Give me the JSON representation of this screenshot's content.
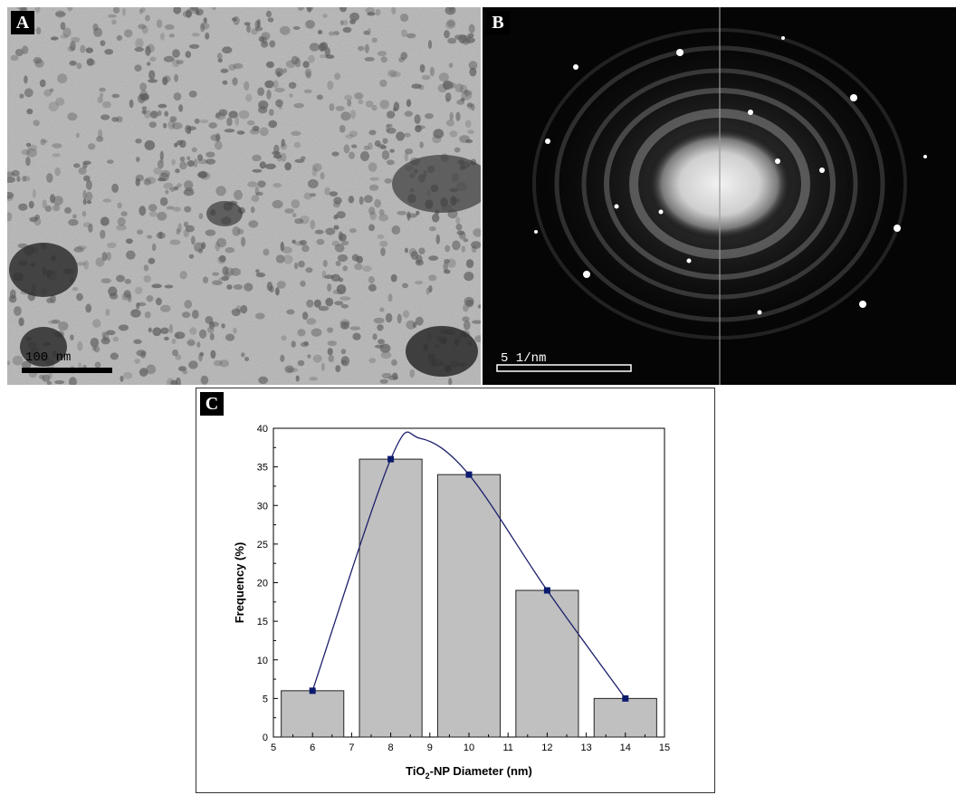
{
  "panels": {
    "a": {
      "letter": "A",
      "scale_bar_label": "100 nm"
    },
    "b": {
      "letter": "B",
      "scale_bar_label": "5 1/nm"
    },
    "c": {
      "letter": "C"
    }
  },
  "colors": {
    "bar_fill": "#c0c0c0",
    "bar_stroke": "#222222",
    "fit_line": "#1b1f6b",
    "marker": "#0a1a6e"
  },
  "chart_data": {
    "type": "bar",
    "title": "",
    "xlabel": "TiO2-NP Diameter (nm)",
    "xlabel_parts": {
      "pre": "TiO",
      "sub": "2",
      "post": "-NP Diameter (nm)"
    },
    "ylabel": "Frequency (%)",
    "xlim": [
      5,
      15
    ],
    "ylim": [
      0,
      40
    ],
    "xticks": [
      5,
      6,
      7,
      8,
      9,
      10,
      11,
      12,
      13,
      14,
      15
    ],
    "yticks": [
      0,
      5,
      10,
      15,
      20,
      25,
      30,
      35,
      40
    ],
    "bar_width": 1.6,
    "bars": [
      {
        "x": 6,
        "value": 6
      },
      {
        "x": 8,
        "value": 36
      },
      {
        "x": 10,
        "value": 34
      },
      {
        "x": 12,
        "value": 19
      },
      {
        "x": 14,
        "value": 5
      }
    ],
    "fit_curve_peak": {
      "x": 8.75,
      "y": 38.7
    },
    "grid": false,
    "legend": "none"
  }
}
